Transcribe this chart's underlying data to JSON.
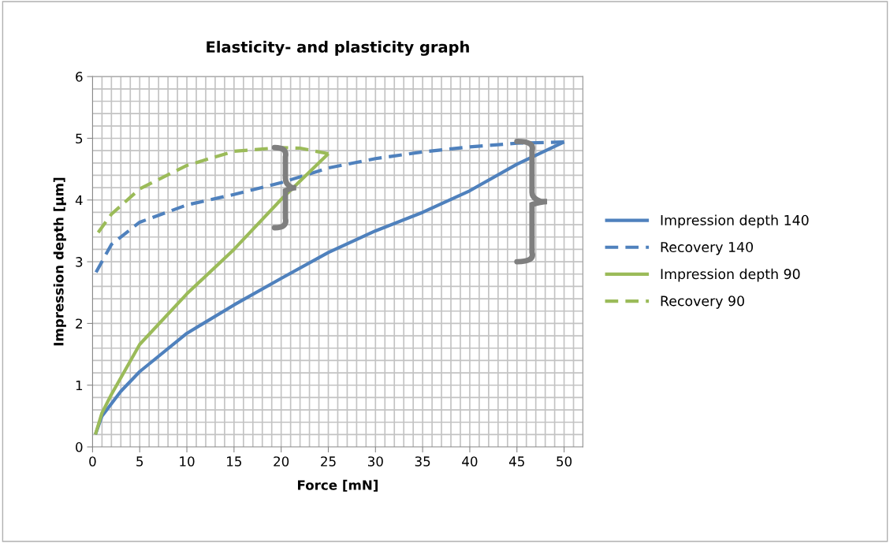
{
  "chart_data": {
    "type": "line",
    "title": "Elasticity- and plasticity graph",
    "xlabel": "Force [mN]",
    "ylabel": "Impression depth [µm]",
    "xlim": [
      0,
      52
    ],
    "xticks": [
      0,
      5,
      10,
      15,
      20,
      25,
      30,
      35,
      40,
      45,
      50
    ],
    "ylim": [
      0,
      6
    ],
    "yticks": [
      0,
      1,
      2,
      3,
      4,
      5,
      6
    ],
    "grid": true,
    "legend": "right",
    "marker": "none",
    "series": [
      {
        "name": "Impression depth 140",
        "color": "#4f81bd",
        "line_style": "solid",
        "x": [
          0.3,
          1,
          2,
          3,
          5,
          10,
          15,
          20,
          25,
          30,
          35,
          40,
          45,
          50
        ],
        "values": [
          0.2,
          0.5,
          0.7,
          0.9,
          1.22,
          1.84,
          2.3,
          2.73,
          3.15,
          3.5,
          3.8,
          4.15,
          4.58,
          4.94
        ]
      },
      {
        "name": "Recovery 140",
        "color": "#4f81bd",
        "line_style": "dashed",
        "x": [
          50,
          45,
          40,
          35,
          30,
          25,
          20,
          15,
          10,
          5,
          2,
          0.3
        ],
        "values": [
          4.94,
          4.92,
          4.86,
          4.78,
          4.67,
          4.52,
          4.28,
          4.09,
          3.92,
          3.64,
          3.28,
          2.81
        ]
      },
      {
        "name": "Impression depth 90",
        "color": "#9bbb59",
        "line_style": "solid",
        "x": [
          0.3,
          1,
          2,
          5,
          10,
          15,
          20,
          25
        ],
        "values": [
          0.2,
          0.55,
          0.85,
          1.66,
          2.48,
          3.2,
          4.01,
          4.75
        ]
      },
      {
        "name": "Recovery 90",
        "color": "#9bbb59",
        "line_style": "dashed",
        "x": [
          25,
          22,
          20,
          15,
          10,
          5,
          2,
          0.3
        ],
        "values": [
          4.75,
          4.84,
          4.85,
          4.79,
          4.56,
          4.18,
          3.77,
          3.41
        ]
      }
    ]
  }
}
